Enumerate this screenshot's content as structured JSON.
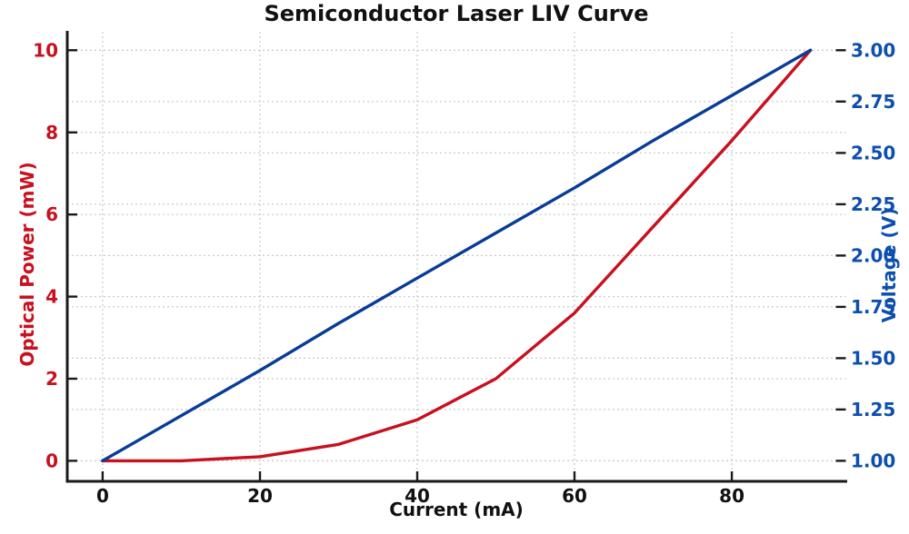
{
  "figure": {
    "title": "Semiconductor Laser LIV Curve",
    "background": "#ffffff"
  },
  "chart_data": {
    "type": "line",
    "title": "Semiconductor Laser LIV Curve",
    "xlabel": "Current (mA)",
    "ylabel_left": "Optical Power (mW)",
    "ylabel_right": "Voltage (V)",
    "x": [
      0,
      10,
      20,
      30,
      40,
      50,
      60,
      70,
      80,
      90
    ],
    "series": [
      {
        "name": "Optical Power",
        "axis": "left",
        "color": "#c8101e",
        "values": [
          0.0,
          0.0,
          0.1,
          0.4,
          1.0,
          2.0,
          3.6,
          5.7,
          7.8,
          10.0
        ]
      },
      {
        "name": "Voltage",
        "axis": "right",
        "color": "#093c96",
        "values": [
          1.0,
          1.22,
          1.44,
          1.67,
          1.89,
          2.11,
          2.33,
          2.56,
          2.78,
          3.0
        ]
      }
    ],
    "x_ticks": [
      0,
      20,
      40,
      60,
      80
    ],
    "y_left_ticks": [
      0,
      2,
      4,
      6,
      8,
      10
    ],
    "y_right_ticks": [
      1.0,
      1.25,
      1.5,
      1.75,
      2.0,
      2.25,
      2.5,
      2.75,
      3.0
    ],
    "y_right_tick_labels": [
      "1.00",
      "1.25",
      "1.50",
      "1.75",
      "2.00",
      "2.25",
      "2.50",
      "2.75",
      "3.00"
    ],
    "xlim": [
      -4.5,
      94.5
    ],
    "ylim_left": [
      -0.5,
      10.45
    ],
    "ylim_right": [
      0.9,
      3.09
    ],
    "grid": "dashed, both y-axes and x-ticks",
    "legend": "none",
    "colors": {
      "power_line": "#c8101e",
      "voltage_line": "#093c96",
      "left_tick_text": "#c8101e",
      "right_tick_text": "#0d4fae",
      "x_tick_text": "#111111",
      "grid": "#c9c9c9",
      "spine": "#1a1a1a",
      "title_text": "#111111"
    }
  }
}
